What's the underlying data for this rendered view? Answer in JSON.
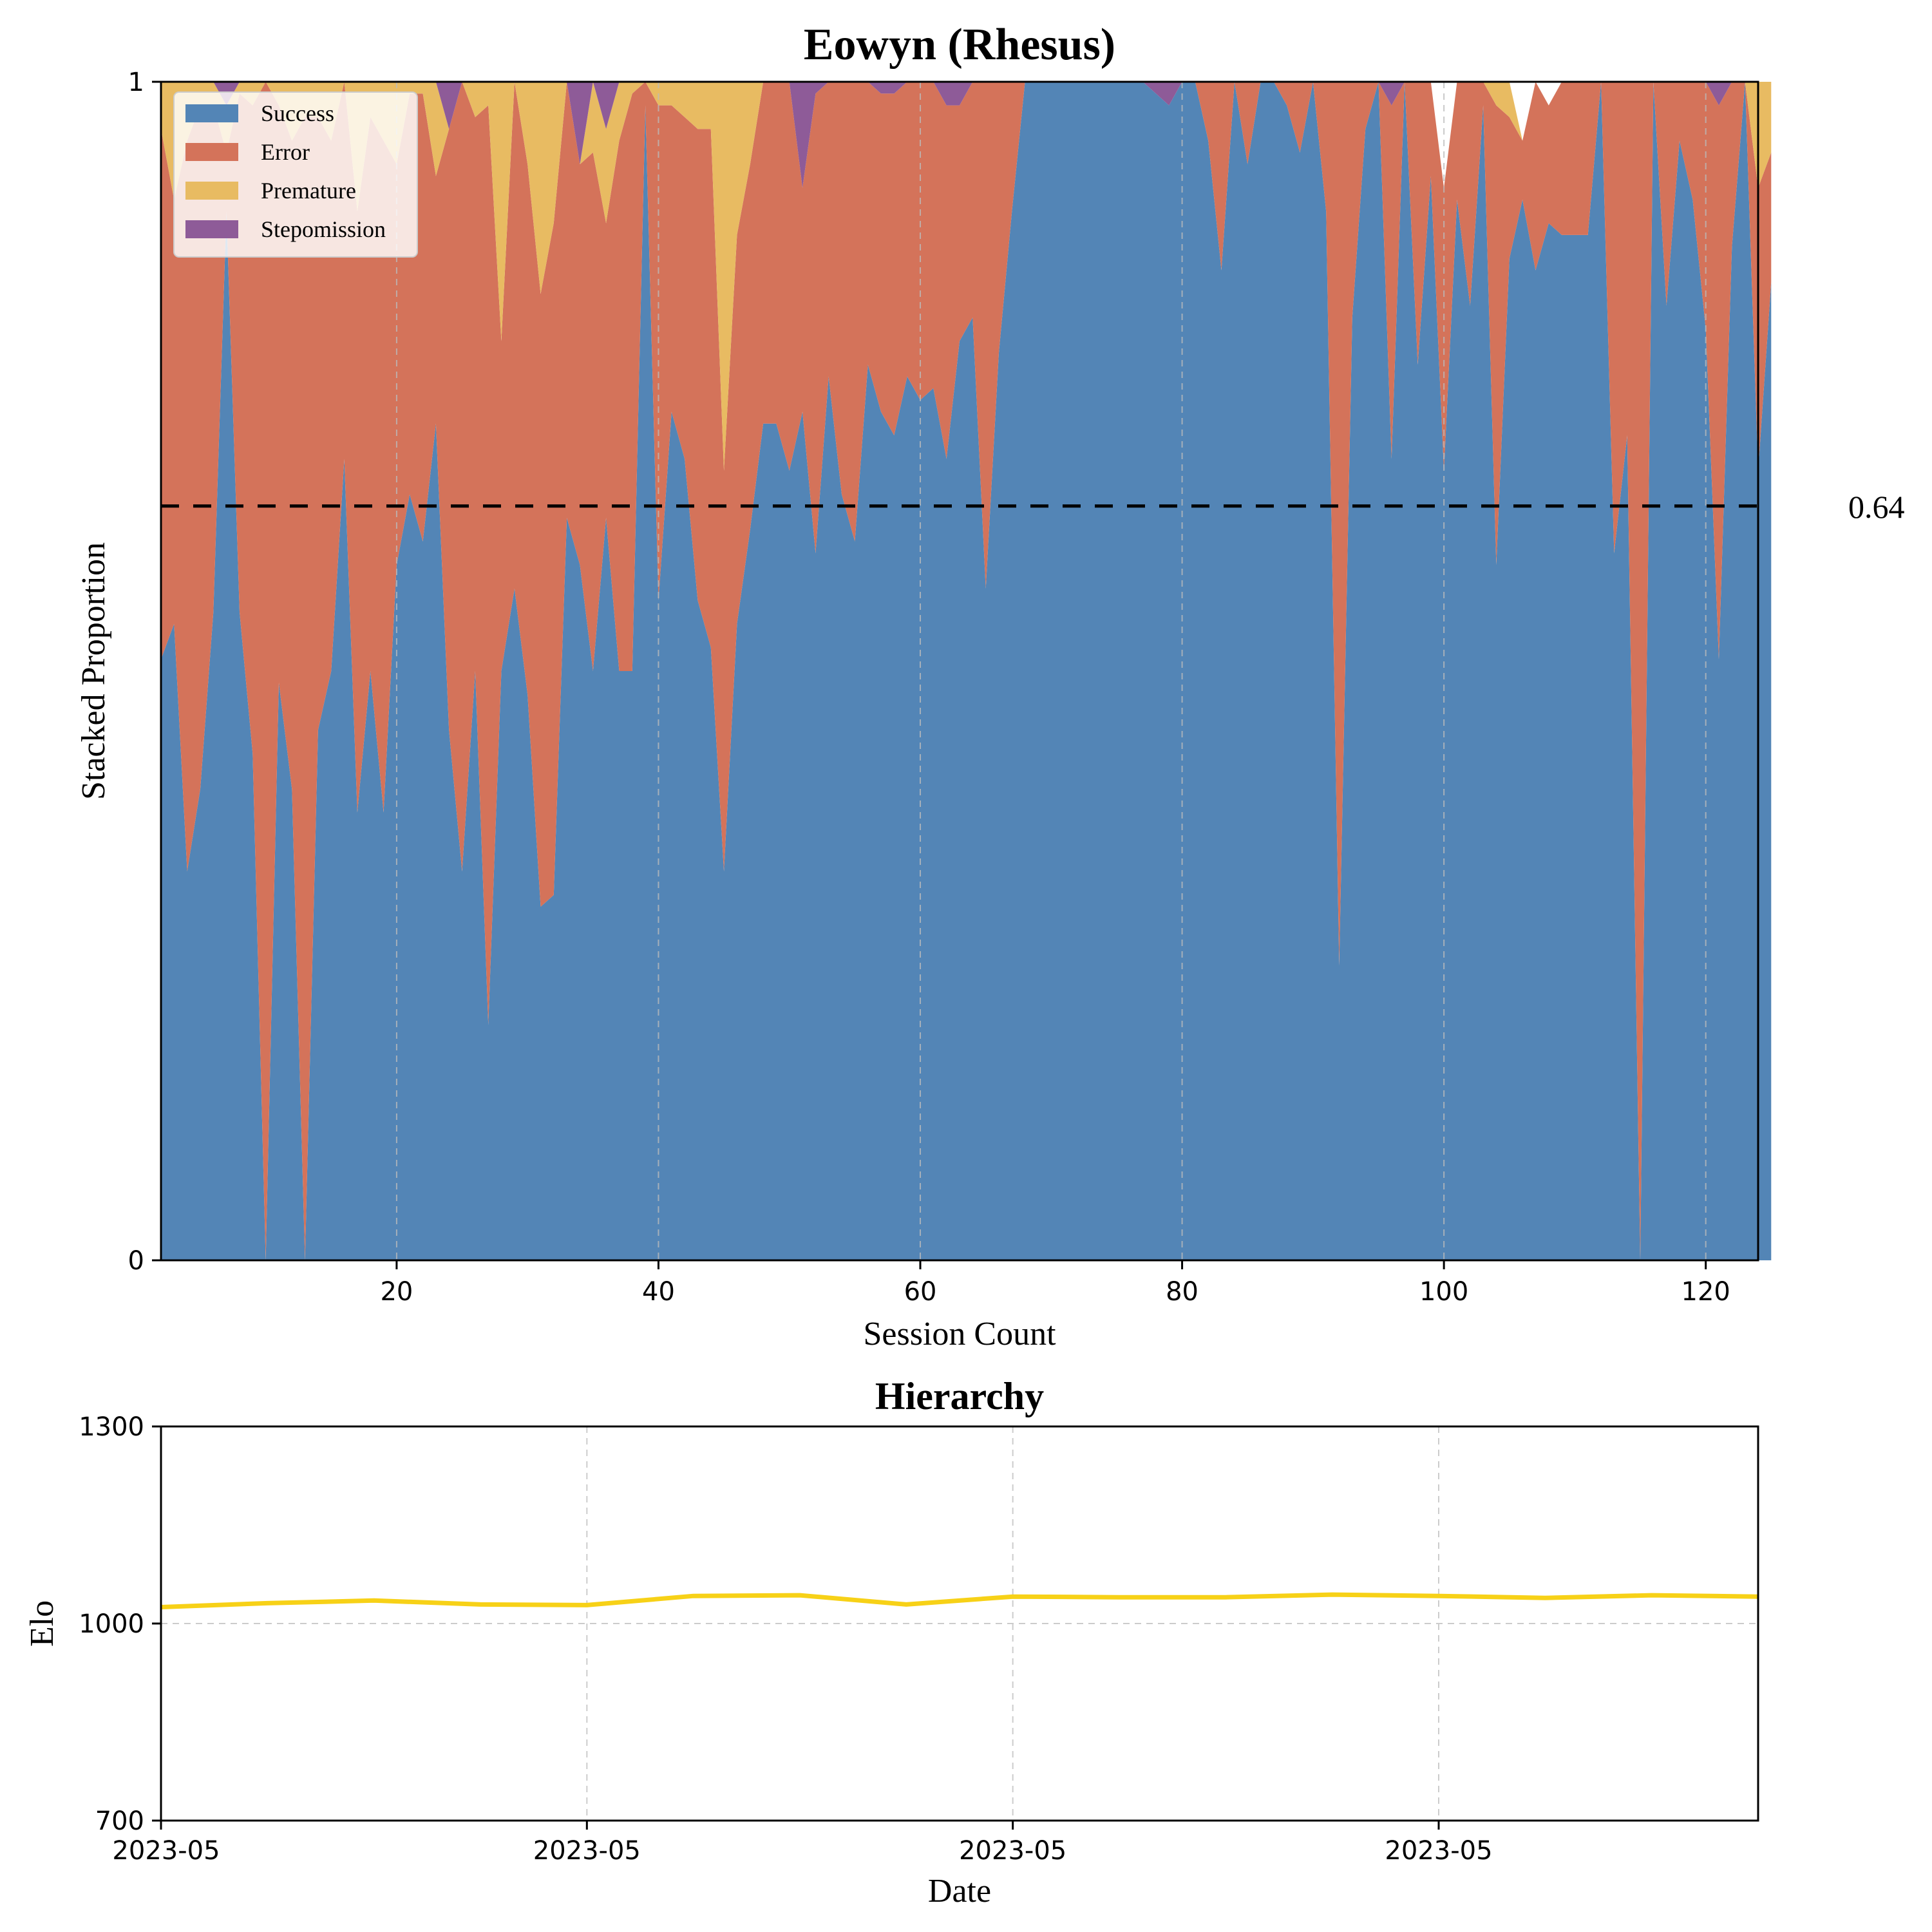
{
  "chart_data": [
    {
      "type": "area",
      "title": "Eowyn (Rhesus)",
      "xlabel": "Session Count",
      "ylabel": "Stacked Proportion",
      "xlim": [
        2,
        124
      ],
      "ylim": [
        0,
        1
      ],
      "xticks": [
        20,
        40,
        60,
        80,
        100,
        120
      ],
      "ytick_labels": [
        "0",
        "1"
      ],
      "legend_position": "upper-left",
      "grid": "vertical dashed",
      "x_start": 2,
      "series": [
        {
          "name": "Success",
          "color": "#5385b6",
          "values": [
            0.51,
            0.54,
            0.33,
            0.4,
            0.55,
            0.89,
            0.55,
            0.43,
            0.0,
            0.49,
            0.4,
            0.0,
            0.45,
            0.5,
            0.68,
            0.38,
            0.5,
            0.38,
            0.59,
            0.65,
            0.61,
            0.71,
            0.45,
            0.33,
            0.5,
            0.2,
            0.5,
            0.57,
            0.48,
            0.3,
            0.31,
            0.63,
            0.59,
            0.5,
            0.63,
            0.5,
            0.5,
            0.98,
            0.56,
            0.72,
            0.68,
            0.56,
            0.52,
            0.33,
            0.54,
            0.62,
            0.71,
            0.71,
            0.67,
            0.72,
            0.6,
            0.75,
            0.65,
            0.61,
            0.76,
            0.72,
            0.7,
            0.75,
            0.73,
            0.74,
            0.68,
            0.78,
            0.8,
            0.57,
            0.77,
            0.89,
            1.0,
            1.0,
            1.0,
            1.0,
            1.0,
            1.0,
            1.0,
            1.0,
            1.0,
            1.0,
            0.99,
            0.98,
            1.0,
            1.0,
            0.95,
            0.84,
            1.0,
            0.93,
            1.0,
            1.0,
            0.98,
            0.94,
            1.0,
            0.89,
            0.25,
            0.8,
            0.96,
            1.0,
            0.68,
            1.0,
            0.76,
            0.92,
            0.67,
            0.9,
            0.81,
            0.98,
            0.59,
            0.85,
            0.9,
            0.84,
            0.88,
            0.87,
            0.87,
            0.87,
            1.0,
            0.6,
            0.7,
            0.0,
            1.0,
            0.81,
            0.95,
            0.9,
            0.79,
            0.51,
            0.86,
            1.0,
            0.67,
            0.83
          ]
        },
        {
          "name": "Error",
          "color": "#d4735a",
          "values": [
            0.45,
            0.36,
            0.62,
            0.58,
            0.43,
            0.05,
            0.44,
            0.55,
            1.0,
            0.49,
            0.55,
            0.97,
            0.52,
            0.45,
            0.32,
            0.51,
            0.47,
            0.57,
            0.34,
            0.34,
            0.38,
            0.21,
            0.51,
            0.67,
            0.47,
            0.78,
            0.28,
            0.43,
            0.45,
            0.52,
            0.57,
            0.37,
            0.34,
            0.44,
            0.25,
            0.45,
            0.49,
            0.02,
            0.42,
            0.26,
            0.29,
            0.4,
            0.44,
            0.34,
            0.33,
            0.31,
            0.29,
            0.29,
            0.33,
            0.19,
            0.39,
            0.25,
            0.35,
            0.39,
            0.24,
            0.27,
            0.29,
            0.25,
            0.27,
            0.26,
            0.3,
            0.2,
            0.2,
            0.43,
            0.23,
            0.11,
            0.0,
            0.0,
            0.0,
            0.0,
            0.0,
            0.0,
            0.0,
            0.0,
            0.0,
            0.0,
            0.0,
            0.0,
            0.0,
            0.0,
            0.05,
            0.16,
            0.0,
            0.07,
            0.0,
            0.0,
            0.02,
            0.06,
            0.0,
            0.11,
            0.75,
            0.2,
            0.04,
            0.0,
            0.3,
            0.0,
            0.24,
            0.08,
            0.24,
            0.1,
            0.19,
            0.02,
            0.39,
            0.12,
            0.05,
            0.16,
            0.1,
            0.13,
            0.13,
            0.13,
            0.0,
            0.4,
            0.3,
            1.0,
            0.0,
            0.19,
            0.05,
            0.1,
            0.21,
            0.47,
            0.14,
            0.0,
            0.24,
            0.11
          ]
        },
        {
          "name": "Premature",
          "color": "#e8bb62",
          "values": [
            0.04,
            0.1,
            0.05,
            0.02,
            0.02,
            0.04,
            0.01,
            0.02,
            0.0,
            0.02,
            0.05,
            0.03,
            0.03,
            0.05,
            0.0,
            0.11,
            0.03,
            0.05,
            0.07,
            0.01,
            0.01,
            0.08,
            0.0,
            0.0,
            0.03,
            0.02,
            0.22,
            0.0,
            0.07,
            0.18,
            0.12,
            0.0,
            0.0,
            0.06,
            0.08,
            0.05,
            0.01,
            0.0,
            0.02,
            0.02,
            0.03,
            0.04,
            0.04,
            0.33,
            0.13,
            0.07,
            0.0,
            0.0,
            0.0,
            0.0,
            0.0,
            0.0,
            0.0,
            0.0,
            0.0,
            0.0,
            0.0,
            0.0,
            0.0,
            0.0,
            0.0,
            0.0,
            0.0,
            0.0,
            0.0,
            0.0,
            0.0,
            0.0,
            0.0,
            0.0,
            0.0,
            0.0,
            0.0,
            0.0,
            0.0,
            0.0,
            0.0,
            0.0,
            0.0,
            0.0,
            0.0,
            0.0,
            0.0,
            0.0,
            0.0,
            0.0,
            0.0,
            0.0,
            0.0,
            0.0,
            0.0,
            0.0,
            0.0,
            0.0,
            0.0,
            0.0,
            0.0,
            0.0,
            0.0,
            0.0,
            0.0,
            0.0,
            0.02,
            0.04,
            0.0,
            0.0,
            0.0,
            0.0,
            0.0,
            0.0,
            0.0,
            0.0,
            0.0,
            0.0,
            0.0,
            0.0,
            0.0,
            0.0,
            0.0,
            0.0,
            0.0,
            0.0,
            0.09,
            0.06
          ]
        },
        {
          "name": "Stepomission",
          "color": "#8e5b98",
          "values": [
            0.0,
            0.0,
            0.0,
            0.0,
            0.0,
            0.02,
            0.0,
            0.0,
            0.0,
            0.0,
            0.0,
            0.0,
            0.0,
            0.0,
            0.0,
            0.0,
            0.0,
            0.0,
            0.0,
            0.0,
            0.0,
            0.0,
            0.04,
            0.0,
            0.0,
            0.0,
            0.0,
            0.0,
            0.0,
            0.0,
            0.0,
            0.0,
            0.07,
            0.0,
            0.04,
            0.0,
            0.0,
            0.0,
            0.0,
            0.0,
            0.0,
            0.0,
            0.0,
            0.0,
            0.0,
            0.0,
            0.0,
            0.0,
            0.0,
            0.09,
            0.01,
            0.0,
            0.0,
            0.0,
            0.0,
            0.01,
            0.01,
            0.0,
            0.0,
            0.0,
            0.02,
            0.02,
            0.0,
            0.0,
            0.0,
            0.0,
            0.0,
            0.0,
            0.0,
            0.0,
            0.0,
            0.0,
            0.0,
            0.0,
            0.0,
            0.0,
            0.01,
            0.02,
            0.0,
            0.0,
            0.0,
            0.0,
            0.0,
            0.0,
            0.0,
            0.0,
            0.0,
            0.0,
            0.0,
            0.0,
            0.0,
            0.0,
            0.0,
            0.0,
            0.02,
            0.0,
            0.0,
            0.0,
            0.0,
            0.0,
            0.0,
            0.0,
            0.0,
            0.0,
            0.0,
            0.0,
            0.0,
            0.0,
            0.0,
            0.0,
            0.0,
            0.0,
            0.0,
            0.0,
            0.0,
            0.0,
            0.0,
            0.0,
            0.0,
            0.02,
            0.0,
            0.0,
            0.0,
            0.0
          ]
        }
      ],
      "reference_line": {
        "value": 0.64,
        "label": "0.64",
        "style": "dashed",
        "color": "#000000"
      }
    },
    {
      "type": "line",
      "title": "Hierarchy",
      "xlabel": "Date",
      "ylabel": "Elo",
      "ylim": [
        700,
        1300
      ],
      "yticks": [
        700,
        1000,
        1300
      ],
      "xtick_labels": [
        "2023-05",
        "2023-05",
        "2023-05",
        "2023-05"
      ],
      "grid": "dashed",
      "x_index_range": [
        0,
        15
      ],
      "xtick_positions": [
        0,
        4,
        8,
        12
      ],
      "series": [
        {
          "name": "",
          "color": "#f7d117",
          "x": [
            0,
            1,
            2,
            3,
            4,
            5,
            6,
            7,
            8,
            9,
            10,
            11,
            12,
            13,
            14,
            15
          ],
          "values": [
            1025,
            1031,
            1035,
            1029,
            1028,
            1042,
            1043,
            1029,
            1041,
            1040,
            1040,
            1044,
            1042,
            1039,
            1043,
            1041
          ]
        }
      ]
    }
  ]
}
